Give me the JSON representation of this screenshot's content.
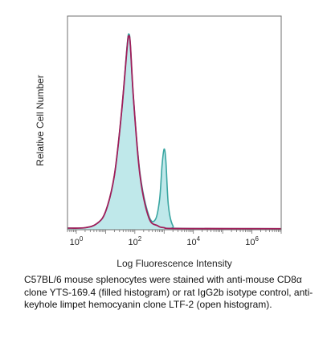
{
  "chart_data": {
    "type": "area",
    "ylabel": "Relative Cell Number",
    "xlabel": "Log Fluorescence Intensity",
    "x_scale": "log",
    "xlim": [
      0.5,
      10000000
    ],
    "ylim": [
      0,
      100
    ],
    "x_ticks": [
      {
        "value": 1,
        "label": "10",
        "exp": "0"
      },
      {
        "value": 100,
        "label": "10",
        "exp": "2"
      },
      {
        "value": 10000,
        "label": "10",
        "exp": "4"
      },
      {
        "value": 1000000,
        "label": "10",
        "exp": "6"
      }
    ],
    "grid": false,
    "series": [
      {
        "color": "#3aa6a2",
        "fill": "#bfe8ea",
        "filled": true,
        "points": [
          [
            0.5,
            0.8
          ],
          [
            2,
            1
          ],
          [
            5,
            3
          ],
          [
            10,
            9
          ],
          [
            20,
            27
          ],
          [
            35,
            58
          ],
          [
            55,
            92
          ],
          [
            63,
            97
          ],
          [
            70,
            92
          ],
          [
            90,
            65
          ],
          [
            150,
            28
          ],
          [
            300,
            7
          ],
          [
            500,
            5
          ],
          [
            700,
            15
          ],
          [
            850,
            32
          ],
          [
            1000,
            40
          ],
          [
            1150,
            34
          ],
          [
            1400,
            12
          ],
          [
            2000,
            2
          ],
          [
            4000,
            0.7
          ],
          [
            10000000,
            0.5
          ]
        ]
      },
      {
        "color": "#a01e5a",
        "filled": false,
        "points": [
          [
            0.5,
            0.8
          ],
          [
            2,
            1
          ],
          [
            5,
            3
          ],
          [
            10,
            9
          ],
          [
            20,
            27
          ],
          [
            35,
            58
          ],
          [
            55,
            91
          ],
          [
            62,
            96
          ],
          [
            70,
            92
          ],
          [
            90,
            65
          ],
          [
            150,
            27
          ],
          [
            300,
            6
          ],
          [
            600,
            2
          ],
          [
            1000,
            1
          ],
          [
            3000,
            0.6
          ],
          [
            10000000,
            0.5
          ]
        ]
      }
    ]
  },
  "caption": "C57BL/6 mouse splenocytes were stained with anti-mouse CD8α clone YTS-169.4 (filled histogram) or rat IgG2b isotype control, anti-keyhole limpet hemocyanin clone LTF-2 (open histogram)."
}
